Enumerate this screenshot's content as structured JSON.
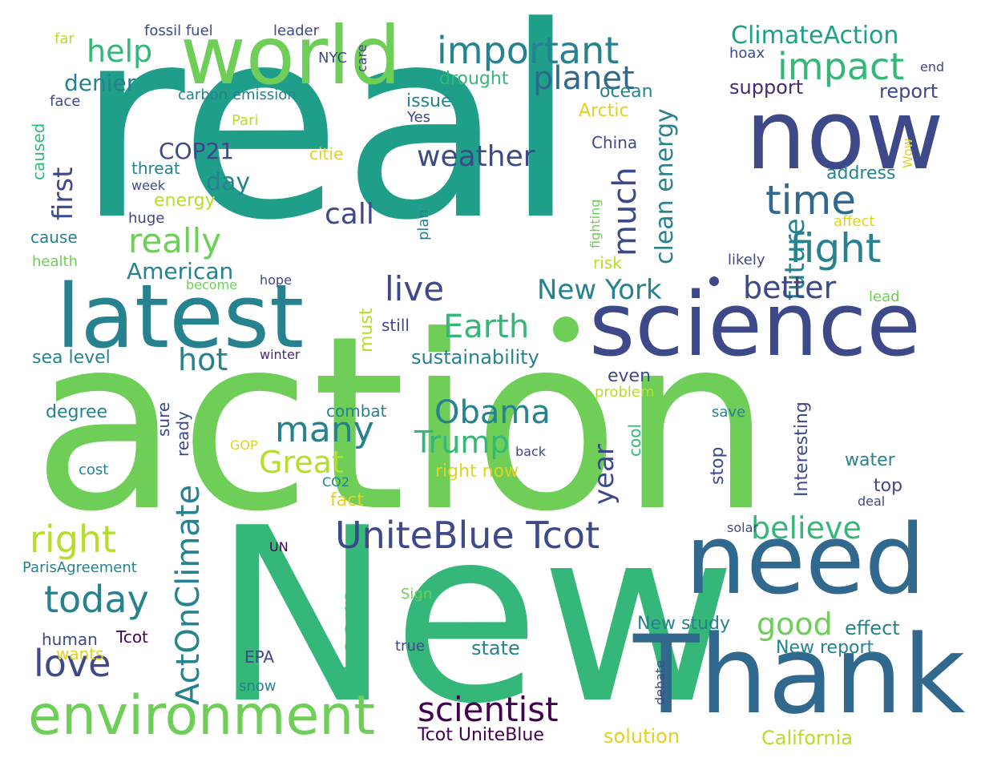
{
  "palette": {
    "c1": "#440154",
    "c2": "#482878",
    "c3": "#3e4989",
    "c4": "#31688e",
    "c5": "#26828e",
    "c6": "#1f9e89",
    "c7": "#35b779",
    "c8": "#6ece58",
    "c9": "#b5de2b",
    "c10": "#e0d21f"
  },
  "words": [
    "real",
    "action",
    "New",
    "world",
    "now",
    "latest",
    "science",
    "need",
    "Thank",
    "environment",
    "important",
    "impact",
    "planet",
    "time",
    "fight",
    "help",
    "ClimateAction",
    "really",
    "weather",
    "much",
    "clean energy",
    "future",
    "call",
    "live",
    "Earth",
    "better",
    "New York",
    "UniteBlue Tcot",
    "believe",
    "many",
    "Obama",
    "Trump",
    "Great",
    "right",
    "today",
    "love",
    "scientist",
    "ActOnClimate",
    "Learn",
    "year",
    "good",
    "denier",
    "first",
    "COP21",
    "day",
    "American",
    "hot",
    "drought",
    "issue",
    "report",
    "support",
    "fossil fuel",
    "leader",
    "far",
    "care",
    "NYC",
    "hoax",
    "end",
    "face",
    "carbon emission",
    "ocean",
    "Arctic",
    "Yes",
    "Pari",
    "caused",
    "China",
    "threat",
    "week",
    "energy",
    "citie",
    "address",
    "Wow",
    "huge",
    "plan",
    "affect",
    "fighting",
    "cause",
    "health",
    "become",
    "hope",
    "likely",
    "risk",
    "lead",
    "must",
    "still",
    "sustainability",
    "sea level",
    "winter",
    "even",
    "problem",
    "Interesting",
    "degree",
    "sure",
    "ready",
    "combat",
    "save",
    "cool",
    "stop",
    "GOP",
    "back",
    "cost",
    "right now",
    "water",
    "top",
    "CO2",
    "fact",
    "deal",
    "solar",
    "UN",
    "ParisAgreement",
    "Sign",
    "New study",
    "effect",
    "human",
    "Tcot",
    "wants",
    "EPA",
    "true",
    "state",
    "New report",
    "snow",
    "debate",
    "Tcot UniteBlue",
    "solution",
    "California"
  ]
}
